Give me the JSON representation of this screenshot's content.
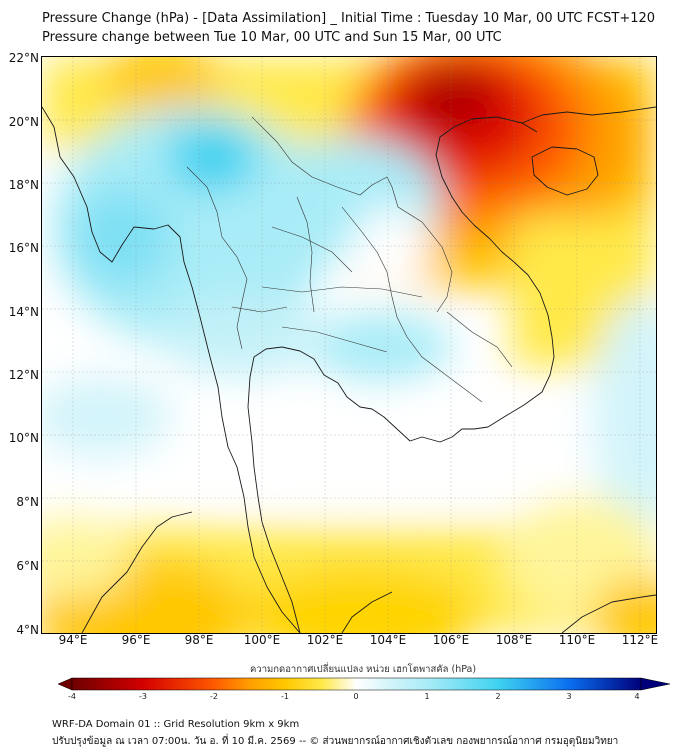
{
  "title": {
    "line1": "Pressure Change (hPa) - [Data Assimilation] _ Initial Time : Tuesday 10 Mar, 00 UTC FCST+120",
    "line2": "Pressure change between Tue 10 Mar, 00 UTC and Sun 15 Mar, 00 UTC"
  },
  "map": {
    "lat_labels": [
      "22°N",
      "20°N",
      "18°N",
      "16°N",
      "14°N",
      "12°N",
      "10°N",
      "8°N",
      "6°N",
      "4°N"
    ],
    "lon_labels": [
      "94°E",
      "96°E",
      "98°E",
      "100°E",
      "102°E",
      "104°E",
      "106°E",
      "108°E",
      "110°E",
      "112°E"
    ],
    "lat_range": [
      4,
      22.3
    ],
    "lon_range": [
      93.0,
      112.5
    ]
  },
  "colorbar": {
    "title": "ความกดอากาศเปลี่ยนแปลง หน่วย เฮกโตพาสคัล (hPa)",
    "ticks": [
      "-4",
      "-3",
      "-2",
      "-1",
      "0",
      "1",
      "2",
      "3",
      "4"
    ],
    "min": -4,
    "max": 4,
    "colors": {
      "neg4": "#6e0000",
      "neg3": "#d40000",
      "neg2": "#ff5a00",
      "neg15": "#ff9e00",
      "neg1": "#ffc800",
      "neg05": "#ffe94a",
      "zero": "#ffffff",
      "pos05": "#d2f4fa",
      "pos1": "#a9ecf7",
      "pos2": "#3ed2f0",
      "pos3": "#0a6ef0",
      "pos4": "#00007a"
    }
  },
  "footer": {
    "line1": "WRF-DA Domain 01 :: Grid Resolution 9km x 9km",
    "line2": "ปรับปรุงข้อมูล ณ เวลา 07:00น. วัน อ. ที่ 10 มี.ค. 2569 -- © ส่วนพยากรณ์อากาศเชิงตัวเลข กองพยากรณ์อากาศ กรมอุตุนิยมวิทยา"
  }
}
